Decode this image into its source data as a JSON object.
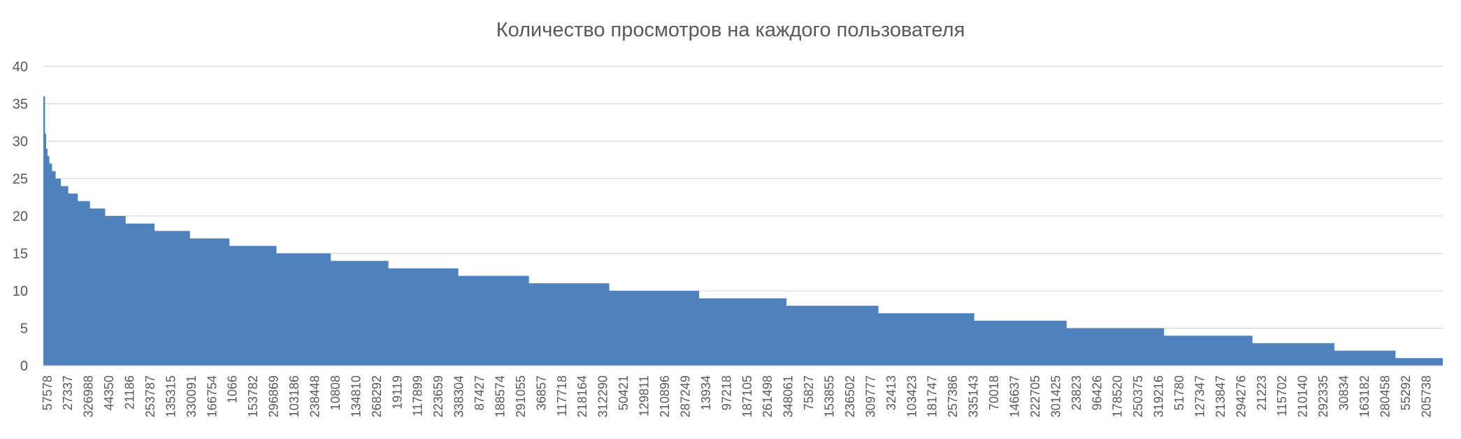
{
  "chart_data": {
    "type": "area",
    "title": "Количество просмотров на каждого пользователя",
    "xlabel": "",
    "ylabel": "",
    "ylim": [
      0,
      40
    ],
    "yticks": [
      0,
      5,
      10,
      15,
      20,
      25,
      30,
      35,
      40
    ],
    "grid": true,
    "legend": "none",
    "colors": {
      "fill": "#4F81BD",
      "grid": "#D9D9D9",
      "text": "#595959"
    },
    "x_tick_labels": [
      "57578",
      "27337",
      "326988",
      "44350",
      "21186",
      "253787",
      "135315",
      "330091",
      "166754",
      "1066",
      "153782",
      "296869",
      "103186",
      "238448",
      "10808",
      "134810",
      "268292",
      "19119",
      "117899",
      "223659",
      "338304",
      "87427",
      "188574",
      "291055",
      "36857",
      "117718",
      "218164",
      "312290",
      "50421",
      "129811",
      "210896",
      "287249",
      "13934",
      "97218",
      "187105",
      "261498",
      "348061",
      "75827",
      "153855",
      "236502",
      "309777",
      "32413",
      "103423",
      "181747",
      "257386",
      "335143",
      "70018",
      "146637",
      "222705",
      "301425",
      "23823",
      "96426",
      "178520",
      "250375",
      "319216",
      "51780",
      "127347",
      "213847",
      "294276",
      "21223",
      "115702",
      "210140",
      "292335",
      "30834",
      "163182",
      "280458",
      "55292",
      "205738"
    ],
    "steps": [
      {
        "start": 0.0,
        "value": 36
      },
      {
        "start": 0.0012,
        "value": 31
      },
      {
        "start": 0.002,
        "value": 29
      },
      {
        "start": 0.003,
        "value": 28
      },
      {
        "start": 0.0043,
        "value": 27
      },
      {
        "start": 0.0062,
        "value": 26
      },
      {
        "start": 0.0088,
        "value": 25
      },
      {
        "start": 0.0125,
        "value": 24
      },
      {
        "start": 0.0178,
        "value": 23
      },
      {
        "start": 0.0246,
        "value": 22
      },
      {
        "start": 0.0333,
        "value": 21
      },
      {
        "start": 0.0442,
        "value": 20
      },
      {
        "start": 0.0588,
        "value": 19
      },
      {
        "start": 0.0795,
        "value": 18
      },
      {
        "start": 0.1048,
        "value": 17
      },
      {
        "start": 0.133,
        "value": 16
      },
      {
        "start": 0.1666,
        "value": 15
      },
      {
        "start": 0.2054,
        "value": 14
      },
      {
        "start": 0.2466,
        "value": 13
      },
      {
        "start": 0.2965,
        "value": 12
      },
      {
        "start": 0.347,
        "value": 11
      },
      {
        "start": 0.4044,
        "value": 10
      },
      {
        "start": 0.4686,
        "value": 9
      },
      {
        "start": 0.531,
        "value": 8
      },
      {
        "start": 0.5967,
        "value": 7
      },
      {
        "start": 0.6652,
        "value": 6
      },
      {
        "start": 0.7312,
        "value": 5
      },
      {
        "start": 0.8008,
        "value": 4
      },
      {
        "start": 0.864,
        "value": 3
      },
      {
        "start": 0.9225,
        "value": 2
      },
      {
        "start": 0.9662,
        "value": 1
      }
    ]
  }
}
